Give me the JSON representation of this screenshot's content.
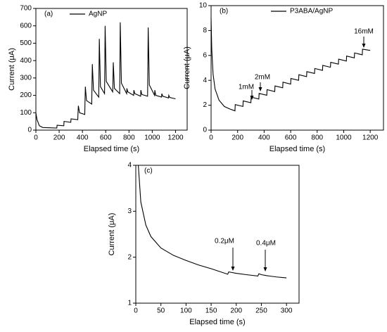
{
  "chart_data": [
    {
      "type": "line",
      "label": "(a)",
      "xlabel": "Elapsed time (s)",
      "ylabel": "Current (μA)",
      "xlim": [
        0,
        1300
      ],
      "xticks": [
        0,
        200,
        400,
        600,
        800,
        1000,
        1200
      ],
      "ylim": [
        0,
        700
      ],
      "yticks": [
        0,
        100,
        200,
        300,
        400,
        500,
        600,
        700
      ],
      "x": [
        0,
        10,
        30,
        60,
        180,
        182,
        240,
        242,
        300,
        302,
        360,
        362,
        365,
        375,
        420,
        422,
        425,
        435,
        480,
        482,
        485,
        495,
        540,
        542,
        545,
        555,
        590,
        592,
        595,
        605,
        660,
        662,
        665,
        675,
        720,
        722,
        725,
        735,
        780,
        782,
        790,
        840,
        842,
        850,
        900,
        902,
        910,
        960,
        962,
        965,
        975,
        1020,
        1022,
        1030,
        1080,
        1082,
        1090,
        1140,
        1142,
        1150,
        1200
      ],
      "series": [
        {
          "name": "AgNP",
          "color": "#000000",
          "values": [
            100,
            60,
            25,
            15,
            12,
            28,
            25,
            50,
            45,
            65,
            60,
            100,
            140,
            100,
            90,
            160,
            250,
            170,
            150,
            250,
            380,
            230,
            190,
            300,
            525,
            250,
            210,
            350,
            600,
            280,
            220,
            260,
            390,
            240,
            210,
            350,
            620,
            270,
            210,
            240,
            220,
            200,
            230,
            210,
            195,
            230,
            205,
            195,
            350,
            590,
            260,
            200,
            230,
            200,
            190,
            210,
            195,
            185,
            200,
            188,
            180
          ]
        }
      ],
      "legend": "top-left"
    },
    {
      "type": "line",
      "label": "(b)",
      "xlabel": "Elapsed time (s)",
      "ylabel": "Current (μA)",
      "xlim": [
        0,
        1300
      ],
      "xticks": [
        0,
        200,
        400,
        600,
        800,
        1000,
        1200
      ],
      "ylim": [
        0,
        10
      ],
      "yticks": [
        0,
        2,
        4,
        6,
        8,
        10
      ],
      "x": [
        0,
        5,
        15,
        30,
        60,
        100,
        140,
        180,
        182,
        240,
        242,
        300,
        302,
        360,
        362,
        420,
        422,
        480,
        482,
        540,
        542,
        600,
        602,
        660,
        662,
        720,
        722,
        780,
        782,
        840,
        842,
        900,
        902,
        960,
        962,
        1020,
        1022,
        1080,
        1082,
        1140,
        1142,
        1200
      ],
      "series": [
        {
          "name": "P3ABA/AgNP",
          "color": "#000000",
          "values": [
            9.0,
            6.5,
            4.5,
            3.3,
            2.4,
            1.9,
            1.7,
            1.55,
            2.05,
            1.9,
            2.35,
            2.2,
            2.65,
            2.5,
            2.95,
            2.8,
            3.25,
            3.1,
            3.55,
            3.4,
            3.85,
            3.7,
            4.15,
            4.0,
            4.45,
            4.3,
            4.7,
            4.55,
            4.95,
            4.8,
            5.2,
            5.05,
            5.45,
            5.3,
            5.7,
            5.55,
            5.95,
            5.8,
            6.2,
            6.05,
            6.5,
            6.4
          ]
        }
      ],
      "annotations": [
        "1mM",
        "2mM",
        "16mM"
      ],
      "legend": "top-right"
    },
    {
      "type": "line",
      "label": "(c)",
      "xlabel": "Elapsed time (s)",
      "ylabel": "Current (μA)",
      "xlim": [
        0,
        325
      ],
      "xticks": [
        0,
        50,
        100,
        150,
        200,
        250,
        300
      ],
      "ylim": [
        1,
        4
      ],
      "yticks": [
        1,
        2,
        3,
        4
      ],
      "x": [
        5,
        10,
        20,
        30,
        50,
        75,
        100,
        125,
        150,
        183,
        185,
        190,
        200,
        220,
        243,
        245,
        250,
        260,
        280,
        300
      ],
      "series": [
        {
          "color": "#000000",
          "values": [
            4.0,
            3.2,
            2.7,
            2.45,
            2.2,
            2.04,
            1.93,
            1.83,
            1.75,
            1.63,
            1.68,
            1.67,
            1.65,
            1.62,
            1.59,
            1.64,
            1.62,
            1.6,
            1.57,
            1.55
          ]
        }
      ],
      "annotations": [
        "0.2μM",
        "0.4μM"
      ]
    }
  ]
}
